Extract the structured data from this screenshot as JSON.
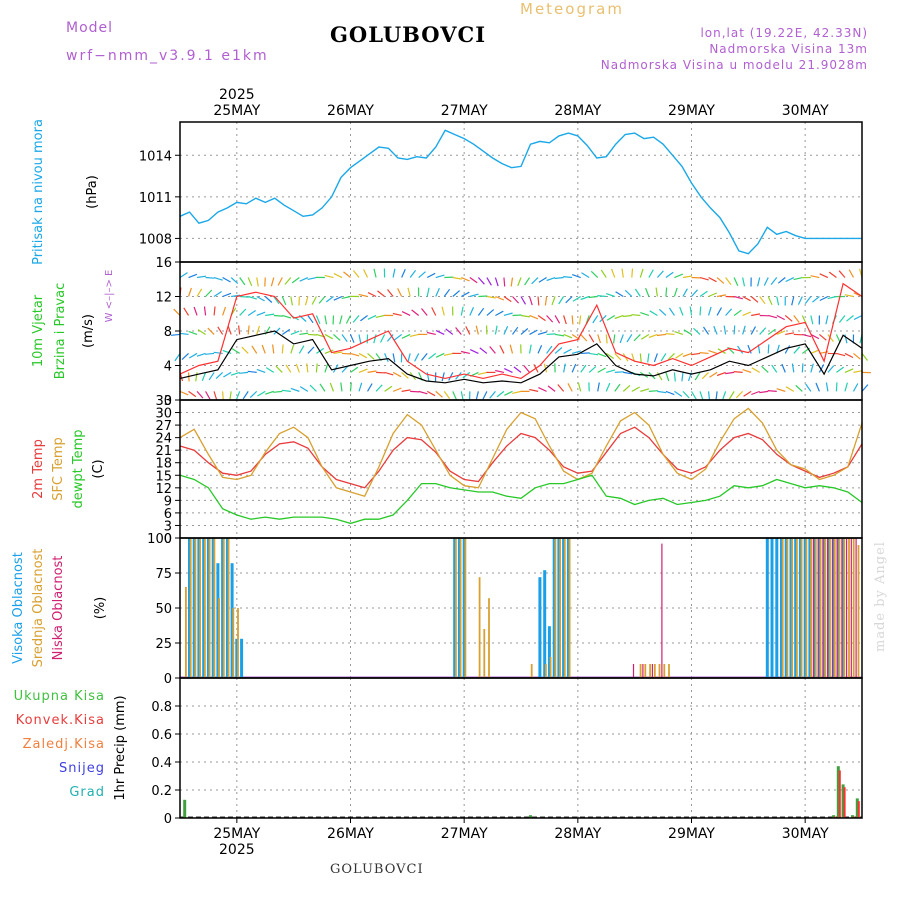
{
  "header": {
    "station": "GOLUBOVCI",
    "meteogram_label": "Meteogram",
    "model_label": "Model",
    "model_name": "wrf−nmm_v3.9.1  e1km",
    "lonlat": "lon,lat (19.22E, 42.33N)",
    "elevation": "Nadmorska Visina 13m",
    "model_elevation": "Nadmorska Visina u modelu 21.9028m",
    "footer_station": "GOLUBOVCI",
    "made_by": "made by Angel"
  },
  "colors": {
    "pressure": "#1aa8e8",
    "temp2m": "#e83c3c",
    "sfc_temp": "#d8a030",
    "dewpoint": "#28c828",
    "high_cloud": "#1aa0e8",
    "mid_cloud": "#d8a030",
    "low_cloud": "#d02070",
    "total_precip": "#40a040",
    "wind_speed": "#000000",
    "gust": "#ff3030"
  },
  "chart_data": [
    {
      "type": "line",
      "panel": "pressure",
      "ylabel_lines": [
        "Pritisak na nivou mora",
        "(hPa)"
      ],
      "yticks": [
        1008,
        1011,
        1014
      ],
      "ylim": [
        1006.3,
        1016.4
      ],
      "x_unit": "hours from 2025-05-24 12:00",
      "xlim": [
        0,
        144
      ],
      "date_labels": [
        "25MAY",
        "26MAY",
        "27MAY",
        "28MAY",
        "29MAY",
        "30MAY"
      ],
      "year_label": "2025",
      "grid": true,
      "series": [
        {
          "x": [
            0,
            2,
            4,
            6,
            8,
            10,
            12,
            14,
            16,
            18,
            20,
            22,
            24,
            26,
            28,
            30,
            32,
            34,
            36,
            38,
            40,
            42,
            44,
            46,
            48,
            50,
            52,
            54,
            56,
            58,
            60,
            62,
            64,
            66,
            68,
            70,
            72,
            74,
            76,
            78,
            80,
            82,
            84,
            86,
            88,
            90,
            92,
            94,
            96,
            98,
            100,
            102,
            104,
            106,
            108,
            110,
            112,
            114,
            116,
            118,
            120,
            122,
            124,
            126,
            128,
            130,
            132,
            134,
            136,
            138,
            140,
            142,
            144
          ],
          "y": [
            1009.6,
            1009.9,
            1009.1,
            1009.3,
            1009.9,
            1010.2,
            1010.6,
            1010.5,
            1010.9,
            1010.6,
            1010.9,
            1010.4,
            1010.0,
            1009.6,
            1009.7,
            1010.2,
            1011.0,
            1012.4,
            1013.1,
            1013.6,
            1014.1,
            1014.6,
            1014.5,
            1013.8,
            1013.7,
            1013.9,
            1013.8,
            1014.6,
            1015.8,
            1015.5,
            1015.2,
            1014.8,
            1014.3,
            1013.8,
            1013.4,
            1013.1,
            1013.2,
            1014.8,
            1015.0,
            1014.9,
            1015.4,
            1015.6,
            1015.4,
            1014.7,
            1013.8,
            1013.9,
            1014.8,
            1015.5,
            1015.6,
            1015.2,
            1015.3,
            1014.8,
            1014.0,
            1013.2,
            1012.0,
            1011.0,
            1010.2,
            1009.5,
            1008.4,
            1007.1,
            1006.9,
            1007.6,
            1008.8,
            1008.3,
            1008.5,
            1008.2,
            1008.0,
            1008.0,
            1008.0,
            1008.0,
            1008.0,
            1008.0,
            1008.0
          ]
        }
      ]
    },
    {
      "type": "line",
      "panel": "wind",
      "ylabel_lines": [
        "10m Vjetar",
        "Brzina i Pravac",
        "(m/s)"
      ],
      "compass_hint": "W  <–|–>  E",
      "yticks": [
        0,
        4,
        8,
        12,
        16
      ],
      "ylim": [
        0,
        16
      ],
      "xlim": [
        0,
        144
      ],
      "grid": true,
      "series": [
        {
          "name": "wind_speed",
          "x": [
            0,
            4,
            8,
            12,
            16,
            20,
            24,
            28,
            32,
            36,
            40,
            44,
            48,
            52,
            56,
            60,
            64,
            68,
            72,
            76,
            80,
            84,
            88,
            92,
            96,
            100,
            104,
            108,
            112,
            116,
            120,
            124,
            128,
            132,
            136,
            140,
            144
          ],
          "y": [
            2.5,
            3.0,
            3.5,
            7.0,
            7.5,
            8.0,
            6.5,
            7.0,
            3.5,
            4.0,
            4.5,
            4.8,
            3.0,
            2.2,
            2.0,
            2.4,
            2.0,
            2.2,
            2.0,
            3.0,
            5.0,
            5.3,
            6.5,
            4.0,
            3.0,
            2.8,
            3.5,
            3.0,
            3.5,
            4.5,
            4.0,
            5.0,
            6.0,
            6.5,
            3.0,
            7.5,
            6.0
          ]
        },
        {
          "name": "gust",
          "x": [
            0,
            4,
            8,
            12,
            16,
            20,
            24,
            28,
            32,
            36,
            40,
            44,
            48,
            52,
            56,
            60,
            64,
            68,
            72,
            76,
            80,
            84,
            88,
            92,
            96,
            100,
            104,
            108,
            112,
            116,
            120,
            124,
            128,
            132,
            136,
            140,
            144
          ],
          "y": [
            3.0,
            4.0,
            4.5,
            12.0,
            12.5,
            12.0,
            9.5,
            10.0,
            5.5,
            6.0,
            7.0,
            8.0,
            4.5,
            3.0,
            2.5,
            3.0,
            2.5,
            3.0,
            2.5,
            4.0,
            6.5,
            7.0,
            11.0,
            5.5,
            4.5,
            4.0,
            4.8,
            4.0,
            5.0,
            6.0,
            5.5,
            7.0,
            8.5,
            9.0,
            4.5,
            13.5,
            12.0
          ]
        }
      ]
    },
    {
      "type": "line",
      "panel": "temperature",
      "ylabel_lines": [
        "2m Temp",
        "SFC Temp",
        "dewpt Temp",
        "(C)"
      ],
      "yticks": [
        0,
        3,
        6,
        9,
        12,
        15,
        18,
        21,
        24,
        27,
        30,
        33
      ],
      "ylim": [
        0,
        33
      ],
      "xlim": [
        0,
        144
      ],
      "grid": true,
      "series": [
        {
          "name": "2m Temp",
          "x": [
            0,
            3,
            6,
            9,
            12,
            15,
            18,
            21,
            24,
            27,
            30,
            33,
            36,
            39,
            42,
            45,
            48,
            51,
            54,
            57,
            60,
            63,
            66,
            69,
            72,
            75,
            78,
            81,
            84,
            87,
            90,
            93,
            96,
            99,
            102,
            105,
            108,
            111,
            114,
            117,
            120,
            123,
            126,
            129,
            132,
            135,
            138,
            141,
            144
          ],
          "y": [
            22,
            21,
            18,
            15.5,
            15,
            16,
            20,
            22.5,
            23,
            21.5,
            17,
            14,
            13,
            12,
            16,
            21,
            24,
            23.5,
            20.5,
            16,
            14,
            13.5,
            18,
            22,
            25,
            24,
            21,
            17,
            15.5,
            16,
            20.5,
            25,
            26.5,
            24,
            20,
            16.5,
            15.5,
            17,
            21,
            24,
            25,
            23.5,
            20,
            17.5,
            16,
            14.5,
            15.5,
            17,
            22.5
          ]
        },
        {
          "name": "SFC Temp",
          "x": [
            0,
            3,
            6,
            9,
            12,
            15,
            18,
            21,
            24,
            27,
            30,
            33,
            36,
            39,
            42,
            45,
            48,
            51,
            54,
            57,
            60,
            63,
            66,
            69,
            72,
            75,
            78,
            81,
            84,
            87,
            90,
            93,
            96,
            99,
            102,
            105,
            108,
            111,
            114,
            117,
            120,
            123,
            126,
            129,
            132,
            135,
            138,
            141,
            144
          ],
          "y": [
            24,
            26,
            20,
            14.5,
            14,
            15,
            20.5,
            25,
            26.5,
            24,
            17,
            12,
            11,
            10,
            17,
            25,
            29.5,
            27,
            21,
            15,
            12.5,
            12,
            19,
            26,
            30,
            28.5,
            22,
            16,
            14,
            15.5,
            22,
            28,
            30,
            27,
            20,
            15.5,
            14,
            16.5,
            23,
            28.5,
            31,
            27.5,
            21,
            17.5,
            16.5,
            14,
            15,
            17,
            27.5
          ]
        },
        {
          "name": "dewpt Temp",
          "x": [
            0,
            3,
            6,
            9,
            12,
            15,
            18,
            21,
            24,
            27,
            30,
            33,
            36,
            39,
            42,
            45,
            48,
            51,
            54,
            57,
            60,
            63,
            66,
            69,
            72,
            75,
            78,
            81,
            84,
            87,
            90,
            93,
            96,
            99,
            102,
            105,
            108,
            111,
            114,
            117,
            120,
            123,
            126,
            129,
            132,
            135,
            138,
            141,
            144
          ],
          "y": [
            15,
            14,
            12,
            7,
            5.5,
            4.5,
            5,
            4.5,
            5,
            5,
            5,
            4.5,
            3.5,
            4.5,
            4.5,
            5.5,
            9,
            13,
            13,
            12,
            11.5,
            11,
            11,
            10,
            9.5,
            12,
            13,
            13,
            14,
            15,
            10,
            9.5,
            8,
            9,
            9.5,
            8,
            8.5,
            9,
            10,
            12.5,
            12,
            12.5,
            14,
            13,
            12,
            12.5,
            12,
            11,
            8.5
          ]
        }
      ]
    },
    {
      "type": "bar",
      "panel": "clouds",
      "ylabel_lines": [
        "Visoka Oblacnost",
        "Srednja Oblacnost",
        "Niska Oblacnost",
        "(%)"
      ],
      "yticks": [
        0,
        25,
        50,
        75,
        100
      ],
      "ylim": [
        0,
        100
      ],
      "xlim": [
        0,
        144
      ],
      "grid": true,
      "series": [
        {
          "name": "Visoka Oblacnost",
          "x": [
            2,
            3,
            4,
            5,
            6,
            7,
            8,
            9,
            10,
            11,
            12,
            13,
            58,
            59,
            60,
            76,
            77,
            78,
            79,
            80,
            81,
            82,
            124,
            125,
            126,
            127,
            128,
            129,
            130,
            131,
            132,
            133,
            134,
            135,
            136,
            137,
            138,
            139,
            140
          ],
          "y": [
            100,
            100,
            100,
            100,
            100,
            100,
            82,
            100,
            100,
            82,
            28,
            28,
            100,
            100,
            100,
            72,
            77,
            37,
            100,
            100,
            100,
            100,
            100,
            100,
            100,
            100,
            100,
            100,
            100,
            100,
            100,
            100,
            100,
            100,
            100,
            100,
            100,
            100,
            100
          ]
        },
        {
          "name": "Srednja Oblacnost",
          "x": [
            1,
            2,
            3,
            4,
            5,
            6,
            7,
            8,
            9,
            10,
            11,
            12,
            58,
            59,
            60,
            63,
            64,
            65,
            74,
            77,
            78,
            79,
            80,
            81,
            82,
            97,
            98,
            99,
            100,
            101,
            102,
            103,
            127,
            128,
            129,
            130,
            131,
            132,
            133,
            134,
            135,
            136,
            137,
            138,
            139,
            140,
            141,
            142,
            143
          ],
          "y": [
            65,
            100,
            100,
            100,
            100,
            100,
            100,
            57,
            100,
            100,
            50,
            50,
            100,
            100,
            100,
            72,
            35,
            57,
            10,
            10,
            15,
            100,
            100,
            100,
            100,
            10,
            10,
            10,
            10,
            10,
            10,
            10,
            100,
            100,
            100,
            100,
            100,
            100,
            100,
            100,
            100,
            100,
            100,
            100,
            100,
            100,
            100,
            100,
            95
          ]
        },
        {
          "name": "Niska Oblacnost",
          "x": [
            96,
            98,
            100,
            102,
            134,
            135,
            136,
            137,
            138,
            139,
            140,
            141,
            142,
            143
          ],
          "y": [
            10,
            10,
            10,
            96,
            100,
            100,
            100,
            100,
            100,
            100,
            100,
            100,
            100,
            100
          ]
        }
      ]
    },
    {
      "type": "bar",
      "panel": "precipitation",
      "ylabel_lines": [
        "1hr Precip (mm)"
      ],
      "legend_entries": [
        "Ukupna Kisa",
        "Konvek.Kisa",
        "Zaledj.Kisa",
        "Snijeg",
        "Grad"
      ],
      "yticks": [
        0,
        0.2,
        0.4,
        0.6,
        0.8
      ],
      "ylim": [
        0,
        1.0
      ],
      "xlim": [
        0,
        144
      ],
      "grid": true,
      "series": [
        {
          "name": "Ukupna Kisa",
          "x": [
            1,
            74,
            138,
            139,
            140,
            142,
            143
          ],
          "y": [
            0.13,
            0.02,
            0.02,
            0.37,
            0.24,
            0.02,
            0.14
          ]
        },
        {
          "name": "Konvek.Kisa",
          "x": [
            138,
            139,
            140,
            142,
            143
          ],
          "y": [
            0.01,
            0.34,
            0.22,
            0.01,
            0.12
          ]
        }
      ]
    }
  ]
}
